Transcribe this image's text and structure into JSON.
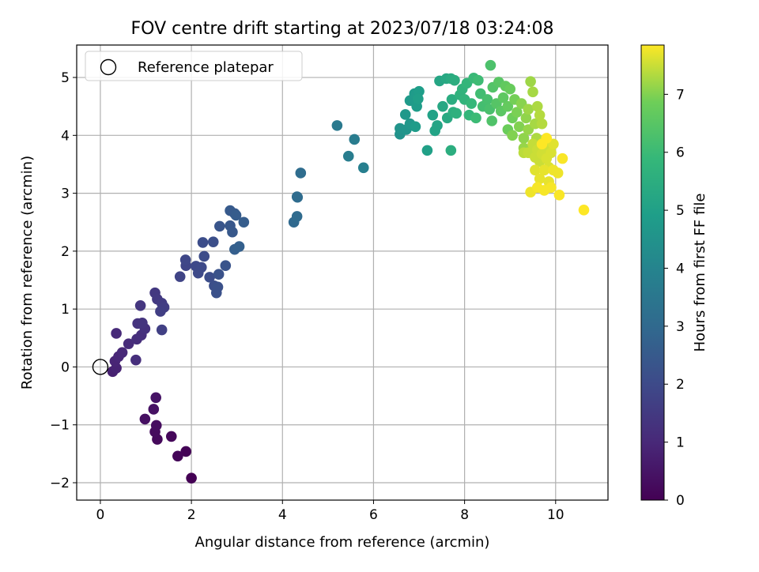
{
  "chart_data": {
    "type": "scatter",
    "title": "FOV centre drift starting at 2023/07/18 03:24:08",
    "xlabel": "Angular distance from reference (arcmin)",
    "ylabel": "Rotation from reference (arcmin)",
    "xlim": [
      -0.52,
      11.15
    ],
    "ylim": [
      -2.3,
      5.56
    ],
    "xticks": [
      0,
      2,
      4,
      6,
      8,
      10
    ],
    "yticks": [
      -2,
      -1,
      0,
      1,
      2,
      3,
      4,
      5
    ],
    "xtick_labels": [
      "0",
      "2",
      "4",
      "6",
      "8",
      "10"
    ],
    "ytick_labels": [
      "−2",
      "−1",
      "0",
      "1",
      "2",
      "3",
      "4",
      "5"
    ],
    "grid": true,
    "legend": {
      "placement": "top-left",
      "entries": [
        "Reference platepar"
      ]
    },
    "reference_point": {
      "x": 0,
      "y": 0,
      "label": "Reference platepar"
    },
    "colorbar": {
      "label": "Hours from first FF file",
      "colormap": "viridis",
      "range": [
        0,
        7.85
      ],
      "ticks": [
        0,
        1,
        2,
        3,
        4,
        5,
        6,
        7
      ],
      "tick_labels": [
        "0",
        "1",
        "2",
        "3",
        "4",
        "5",
        "6",
        "7"
      ]
    },
    "points": [
      {
        "x": 2.0,
        "y": -1.92,
        "t": 0.0
      },
      {
        "x": 1.88,
        "y": -1.46,
        "t": 0.05
      },
      {
        "x": 1.7,
        "y": -1.54,
        "t": 0.1
      },
      {
        "x": 1.56,
        "y": -1.2,
        "t": 0.15
      },
      {
        "x": 1.25,
        "y": -1.25,
        "t": 0.2
      },
      {
        "x": 1.2,
        "y": -1.12,
        "t": 0.25
      },
      {
        "x": 1.23,
        "y": -1.01,
        "t": 0.3
      },
      {
        "x": 0.98,
        "y": -0.9,
        "t": 0.35
      },
      {
        "x": 1.17,
        "y": -0.73,
        "t": 0.4
      },
      {
        "x": 1.22,
        "y": -0.53,
        "t": 0.45
      },
      {
        "x": 0.27,
        "y": -0.08,
        "t": 0.8
      },
      {
        "x": 0.35,
        "y": -0.02,
        "t": 0.85
      },
      {
        "x": 0.32,
        "y": 0.1,
        "t": 0.9
      },
      {
        "x": 0.4,
        "y": 0.18,
        "t": 0.95
      },
      {
        "x": 0.48,
        "y": 0.25,
        "t": 1.0
      },
      {
        "x": 0.35,
        "y": 0.58,
        "t": 1.05
      },
      {
        "x": 0.62,
        "y": 0.4,
        "t": 1.1
      },
      {
        "x": 0.8,
        "y": 0.48,
        "t": 1.15
      },
      {
        "x": 0.9,
        "y": 0.55,
        "t": 1.2
      },
      {
        "x": 0.98,
        "y": 0.66,
        "t": 1.25
      },
      {
        "x": 0.82,
        "y": 0.75,
        "t": 1.3
      },
      {
        "x": 0.92,
        "y": 0.76,
        "t": 1.35
      },
      {
        "x": 0.78,
        "y": 0.12,
        "t": 1.2
      },
      {
        "x": 0.88,
        "y": 1.06,
        "t": 1.4
      },
      {
        "x": 1.2,
        "y": 1.28,
        "t": 1.45
      },
      {
        "x": 1.25,
        "y": 1.17,
        "t": 1.5
      },
      {
        "x": 1.35,
        "y": 1.1,
        "t": 1.55
      },
      {
        "x": 1.4,
        "y": 1.03,
        "t": 1.6
      },
      {
        "x": 1.32,
        "y": 0.96,
        "t": 1.65
      },
      {
        "x": 1.35,
        "y": 0.64,
        "t": 1.7
      },
      {
        "x": 1.75,
        "y": 1.56,
        "t": 1.8
      },
      {
        "x": 1.88,
        "y": 1.75,
        "t": 1.85
      },
      {
        "x": 1.87,
        "y": 1.85,
        "t": 1.9
      },
      {
        "x": 2.1,
        "y": 1.74,
        "t": 1.95
      },
      {
        "x": 2.15,
        "y": 1.62,
        "t": 2.0
      },
      {
        "x": 2.22,
        "y": 1.72,
        "t": 2.0
      },
      {
        "x": 2.28,
        "y": 1.91,
        "t": 2.05
      },
      {
        "x": 2.25,
        "y": 2.15,
        "t": 2.1
      },
      {
        "x": 2.48,
        "y": 2.16,
        "t": 2.15
      },
      {
        "x": 2.4,
        "y": 1.55,
        "t": 2.1
      },
      {
        "x": 2.5,
        "y": 1.4,
        "t": 2.15
      },
      {
        "x": 2.55,
        "y": 1.28,
        "t": 2.2
      },
      {
        "x": 2.58,
        "y": 1.38,
        "t": 2.2
      },
      {
        "x": 2.6,
        "y": 1.6,
        "t": 2.25
      },
      {
        "x": 2.75,
        "y": 1.75,
        "t": 2.3
      },
      {
        "x": 2.62,
        "y": 2.43,
        "t": 2.35
      },
      {
        "x": 2.85,
        "y": 2.44,
        "t": 2.4
      },
      {
        "x": 2.9,
        "y": 2.33,
        "t": 2.45
      },
      {
        "x": 2.85,
        "y": 2.7,
        "t": 2.5
      },
      {
        "x": 2.95,
        "y": 2.65,
        "t": 2.5
      },
      {
        "x": 2.98,
        "y": 2.62,
        "t": 2.55
      },
      {
        "x": 3.15,
        "y": 2.5,
        "t": 2.6
      },
      {
        "x": 2.95,
        "y": 2.03,
        "t": 2.65
      },
      {
        "x": 3.05,
        "y": 2.08,
        "t": 2.7
      },
      {
        "x": 4.25,
        "y": 2.5,
        "t": 3.0
      },
      {
        "x": 4.32,
        "y": 2.6,
        "t": 3.05
      },
      {
        "x": 4.32,
        "y": 2.94,
        "t": 3.1
      },
      {
        "x": 4.33,
        "y": 2.93,
        "t": 3.1
      },
      {
        "x": 4.4,
        "y": 3.35,
        "t": 3.15
      },
      {
        "x": 5.2,
        "y": 4.17,
        "t": 3.6
      },
      {
        "x": 5.58,
        "y": 3.93,
        "t": 3.7
      },
      {
        "x": 5.45,
        "y": 3.64,
        "t": 3.75
      },
      {
        "x": 5.78,
        "y": 3.44,
        "t": 3.8
      },
      {
        "x": 6.58,
        "y": 4.02,
        "t": 4.5
      },
      {
        "x": 6.58,
        "y": 4.12,
        "t": 4.55
      },
      {
        "x": 6.72,
        "y": 4.1,
        "t": 4.6
      },
      {
        "x": 6.8,
        "y": 4.2,
        "t": 4.65
      },
      {
        "x": 6.7,
        "y": 4.36,
        "t": 4.7
      },
      {
        "x": 6.8,
        "y": 4.6,
        "t": 4.75
      },
      {
        "x": 6.9,
        "y": 4.72,
        "t": 4.8
      },
      {
        "x": 6.95,
        "y": 4.5,
        "t": 4.85
      },
      {
        "x": 6.92,
        "y": 4.15,
        "t": 4.85
      },
      {
        "x": 7.0,
        "y": 4.76,
        "t": 4.9
      },
      {
        "x": 6.98,
        "y": 4.63,
        "t": 4.95
      },
      {
        "x": 7.18,
        "y": 3.74,
        "t": 5.0
      },
      {
        "x": 7.3,
        "y": 4.35,
        "t": 5.05
      },
      {
        "x": 7.35,
        "y": 4.08,
        "t": 5.1
      },
      {
        "x": 7.4,
        "y": 4.17,
        "t": 5.15
      },
      {
        "x": 7.45,
        "y": 4.94,
        "t": 5.2
      },
      {
        "x": 7.52,
        "y": 4.5,
        "t": 5.25
      },
      {
        "x": 7.6,
        "y": 4.98,
        "t": 5.3
      },
      {
        "x": 7.62,
        "y": 4.3,
        "t": 5.35
      },
      {
        "x": 7.7,
        "y": 4.98,
        "t": 5.4
      },
      {
        "x": 7.72,
        "y": 4.62,
        "t": 5.45
      },
      {
        "x": 7.7,
        "y": 3.74,
        "t": 5.5
      },
      {
        "x": 7.78,
        "y": 4.95,
        "t": 5.5
      },
      {
        "x": 7.75,
        "y": 4.4,
        "t": 5.55
      },
      {
        "x": 7.82,
        "y": 4.38,
        "t": 5.6
      },
      {
        "x": 7.9,
        "y": 4.7,
        "t": 5.65
      },
      {
        "x": 7.95,
        "y": 4.8,
        "t": 5.7
      },
      {
        "x": 8.0,
        "y": 4.62,
        "t": 5.75
      },
      {
        "x": 8.05,
        "y": 4.9,
        "t": 5.8
      },
      {
        "x": 8.1,
        "y": 4.35,
        "t": 5.85
      },
      {
        "x": 8.15,
        "y": 4.55,
        "t": 5.9
      },
      {
        "x": 8.2,
        "y": 4.99,
        "t": 5.95
      },
      {
        "x": 8.25,
        "y": 4.3,
        "t": 6.0
      },
      {
        "x": 8.3,
        "y": 4.95,
        "t": 6.05
      },
      {
        "x": 8.35,
        "y": 4.72,
        "t": 6.1
      },
      {
        "x": 8.4,
        "y": 4.5,
        "t": 6.15
      },
      {
        "x": 8.5,
        "y": 4.62,
        "t": 6.2
      },
      {
        "x": 8.55,
        "y": 4.45,
        "t": 6.25
      },
      {
        "x": 8.57,
        "y": 5.21,
        "t": 6.3
      },
      {
        "x": 8.6,
        "y": 4.25,
        "t": 6.35
      },
      {
        "x": 8.62,
        "y": 4.83,
        "t": 6.4
      },
      {
        "x": 8.7,
        "y": 4.55,
        "t": 6.45
      },
      {
        "x": 8.75,
        "y": 4.92,
        "t": 6.5
      },
      {
        "x": 8.8,
        "y": 4.42,
        "t": 6.55
      },
      {
        "x": 8.85,
        "y": 4.65,
        "t": 6.6
      },
      {
        "x": 8.9,
        "y": 4.85,
        "t": 6.65
      },
      {
        "x": 8.95,
        "y": 4.5,
        "t": 6.7
      },
      {
        "x": 9.0,
        "y": 4.8,
        "t": 6.75
      },
      {
        "x": 8.95,
        "y": 4.1,
        "t": 6.8
      },
      {
        "x": 9.05,
        "y": 4.3,
        "t": 6.85
      },
      {
        "x": 9.1,
        "y": 4.62,
        "t": 6.9
      },
      {
        "x": 9.15,
        "y": 4.4,
        "t": 6.95
      },
      {
        "x": 9.05,
        "y": 4.0,
        "t": 7.0
      },
      {
        "x": 9.2,
        "y": 4.15,
        "t": 7.0
      },
      {
        "x": 9.25,
        "y": 4.55,
        "t": 7.05
      },
      {
        "x": 9.3,
        "y": 3.95,
        "t": 7.1
      },
      {
        "x": 9.35,
        "y": 4.3,
        "t": 7.1
      },
      {
        "x": 9.3,
        "y": 3.78,
        "t": 7.15
      },
      {
        "x": 9.4,
        "y": 4.1,
        "t": 7.15
      },
      {
        "x": 9.45,
        "y": 4.93,
        "t": 7.2
      },
      {
        "x": 9.4,
        "y": 4.45,
        "t": 7.2
      },
      {
        "x": 9.5,
        "y": 4.75,
        "t": 7.25
      },
      {
        "x": 9.55,
        "y": 4.2,
        "t": 7.25
      },
      {
        "x": 9.6,
        "y": 4.5,
        "t": 7.3
      },
      {
        "x": 9.58,
        "y": 3.95,
        "t": 7.3
      },
      {
        "x": 9.65,
        "y": 4.35,
        "t": 7.35
      },
      {
        "x": 9.7,
        "y": 4.2,
        "t": 7.35
      },
      {
        "x": 9.75,
        "y": 3.9,
        "t": 7.4
      },
      {
        "x": 9.3,
        "y": 3.7,
        "t": 7.4
      },
      {
        "x": 9.4,
        "y": 3.7,
        "t": 7.45
      },
      {
        "x": 9.5,
        "y": 3.85,
        "t": 7.45
      },
      {
        "x": 9.55,
        "y": 3.62,
        "t": 7.5
      },
      {
        "x": 9.6,
        "y": 3.75,
        "t": 7.5
      },
      {
        "x": 9.65,
        "y": 3.55,
        "t": 7.5
      },
      {
        "x": 9.7,
        "y": 3.68,
        "t": 7.55
      },
      {
        "x": 9.75,
        "y": 3.8,
        "t": 7.55
      },
      {
        "x": 9.8,
        "y": 3.6,
        "t": 7.6
      },
      {
        "x": 9.85,
        "y": 3.45,
        "t": 7.6
      },
      {
        "x": 9.9,
        "y": 3.7,
        "t": 7.6
      },
      {
        "x": 9.95,
        "y": 3.85,
        "t": 7.65
      },
      {
        "x": 9.55,
        "y": 3.4,
        "t": 7.65
      },
      {
        "x": 9.65,
        "y": 3.25,
        "t": 7.7
      },
      {
        "x": 9.75,
        "y": 3.4,
        "t": 7.7
      },
      {
        "x": 9.85,
        "y": 3.2,
        "t": 7.7
      },
      {
        "x": 9.95,
        "y": 3.4,
        "t": 7.75
      },
      {
        "x": 10.05,
        "y": 3.35,
        "t": 7.75
      },
      {
        "x": 9.45,
        "y": 3.02,
        "t": 7.75
      },
      {
        "x": 9.6,
        "y": 3.1,
        "t": 7.8
      },
      {
        "x": 9.75,
        "y": 3.05,
        "t": 7.8
      },
      {
        "x": 9.9,
        "y": 3.1,
        "t": 7.8
      },
      {
        "x": 10.08,
        "y": 2.97,
        "t": 7.82
      },
      {
        "x": 10.15,
        "y": 3.6,
        "t": 7.82
      },
      {
        "x": 10.62,
        "y": 2.71,
        "t": 7.85
      },
      {
        "x": 9.8,
        "y": 3.95,
        "t": 7.85
      },
      {
        "x": 9.7,
        "y": 3.85,
        "t": 7.85
      }
    ]
  }
}
